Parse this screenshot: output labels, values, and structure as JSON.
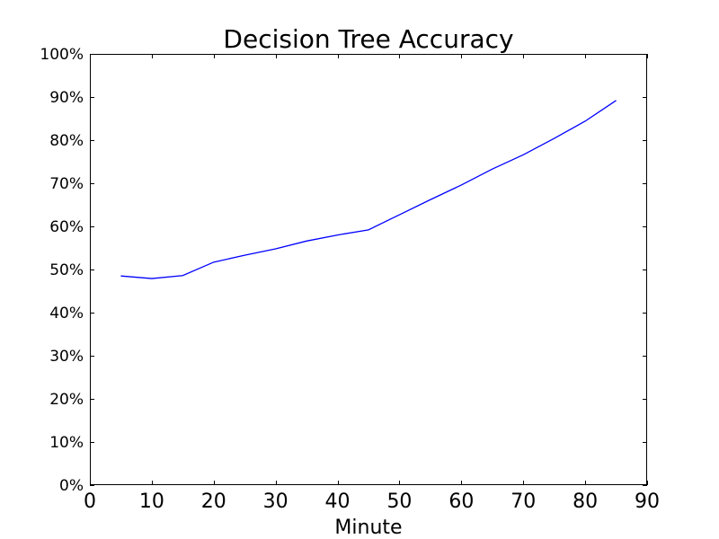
{
  "chart_data": {
    "type": "line",
    "title": "Decision Tree Accuracy",
    "xlabel": "Minute",
    "ylabel": "",
    "xlim": [
      0,
      90
    ],
    "ylim": [
      0,
      100
    ],
    "x_ticks": [
      0,
      10,
      20,
      30,
      40,
      50,
      60,
      70,
      80,
      90
    ],
    "x_tick_labels": [
      "0",
      "10",
      "20",
      "30",
      "40",
      "50",
      "60",
      "70",
      "80",
      "90"
    ],
    "y_ticks": [
      0,
      10,
      20,
      30,
      40,
      50,
      60,
      70,
      80,
      90,
      100
    ],
    "y_tick_labels": [
      "0%",
      "10%",
      "20%",
      "30%",
      "40%",
      "50%",
      "60%",
      "70%",
      "80%",
      "90%",
      "100%"
    ],
    "grid": false,
    "series": [
      {
        "color": "#0000ff",
        "x": [
          5,
          10,
          15,
          20,
          25,
          30,
          35,
          40,
          45,
          50,
          55,
          60,
          65,
          70,
          75,
          80,
          85
        ],
        "y": [
          48.5,
          47.9,
          48.6,
          51.7,
          53.3,
          54.8,
          56.6,
          58.0,
          59.2,
          62.7,
          66.2,
          69.6,
          73.3,
          76.6,
          80.4,
          84.4,
          89.2
        ]
      }
    ]
  }
}
